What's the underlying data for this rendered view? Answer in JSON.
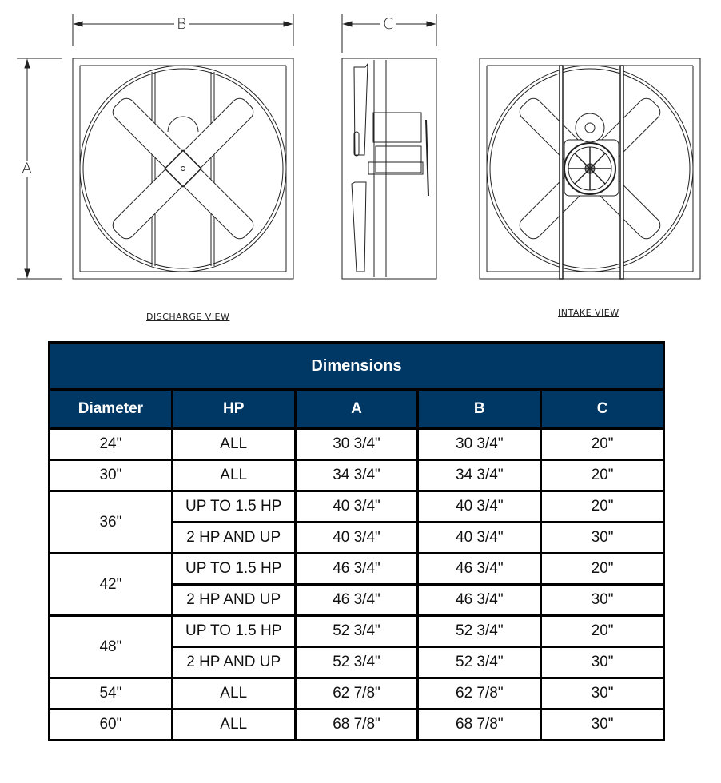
{
  "drawing": {
    "dim_labels": {
      "a": "A",
      "b": "B",
      "c": "C"
    },
    "views": {
      "discharge": "DISCHARGE VIEW",
      "intake": "INTAKE VIEW"
    }
  },
  "table": {
    "title": "Dimensions",
    "header_color": "#003865",
    "columns": [
      "Diameter",
      "HP",
      "A",
      "B",
      "C"
    ],
    "rows": [
      {
        "diameter": "24\"",
        "hp": "ALL",
        "a": "30 3/4\"",
        "b": "30 3/4\"",
        "c": "20\""
      },
      {
        "diameter": "30\"",
        "hp": "ALL",
        "a": "34 3/4\"",
        "b": "34 3/4\"",
        "c": "20\""
      },
      {
        "diameter": "36\"",
        "hp": "UP TO 1.5 HP",
        "a": "40 3/4\"",
        "b": "40 3/4\"",
        "c": "20\""
      },
      {
        "diameter": "",
        "hp": "2 HP AND UP",
        "a": "40 3/4\"",
        "b": "40 3/4\"",
        "c": "30\""
      },
      {
        "diameter": "42\"",
        "hp": "UP TO 1.5 HP",
        "a": "46 3/4\"",
        "b": "46 3/4\"",
        "c": "20\""
      },
      {
        "diameter": "",
        "hp": "2 HP AND UP",
        "a": "46 3/4\"",
        "b": "46 3/4\"",
        "c": "30\""
      },
      {
        "diameter": "48\"",
        "hp": "UP TO 1.5 HP",
        "a": "52 3/4\"",
        "b": "52 3/4\"",
        "c": "20\""
      },
      {
        "diameter": "",
        "hp": "2 HP AND UP",
        "a": "52 3/4\"",
        "b": "52 3/4\"",
        "c": "30\""
      },
      {
        "diameter": "54\"",
        "hp": "ALL",
        "a": "62 7/8\"",
        "b": "62 7/8\"",
        "c": "30\""
      },
      {
        "diameter": "60\"",
        "hp": "ALL",
        "a": "68 7/8\"",
        "b": "68 7/8\"",
        "c": "30\""
      }
    ]
  }
}
